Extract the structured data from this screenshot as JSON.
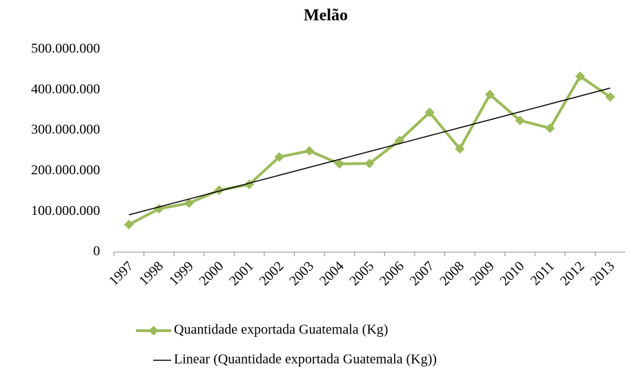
{
  "chart_data": {
    "type": "line",
    "title": "Melão",
    "categories": [
      "1997",
      "1998",
      "1999",
      "2000",
      "2001",
      "2002",
      "2003",
      "2004",
      "2005",
      "2006",
      "2007",
      "2008",
      "2009",
      "2010",
      "2011",
      "2012",
      "2013"
    ],
    "series": [
      {
        "name": "Quantidade exportada Guatemala (Kg)",
        "color": "#9bbb59",
        "markers": true,
        "values": [
          68000000,
          107000000,
          121000000,
          153000000,
          167000000,
          235000000,
          250000000,
          218000000,
          219000000,
          276000000,
          345000000,
          255000000,
          389000000,
          325000000,
          306000000,
          434000000,
          383000000
        ]
      },
      {
        "name": "Linear (Quantidade exportada Guatemala (Kg))",
        "color": "#000000",
        "markers": false,
        "values": [
          92000000,
          111600000,
          131100000,
          150700000,
          170200000,
          189800000,
          209400000,
          228900000,
          248500000,
          268000000,
          287600000,
          307200000,
          326700000,
          346300000,
          365800000,
          385400000,
          405000000
        ]
      }
    ],
    "ylim": [
      0,
      500000000
    ],
    "yticks": [
      0,
      {
        "value": 100000000,
        "label": "100.000.000"
      },
      {
        "value": 200000000,
        "label": "200.000.000"
      },
      {
        "value": 300000000,
        "label": "300.000.000"
      },
      {
        "value": 400000000,
        "label": "400.000.000"
      },
      {
        "value": 500000000,
        "label": "500.000.000"
      }
    ],
    "grid": false,
    "legend": "bottom"
  }
}
